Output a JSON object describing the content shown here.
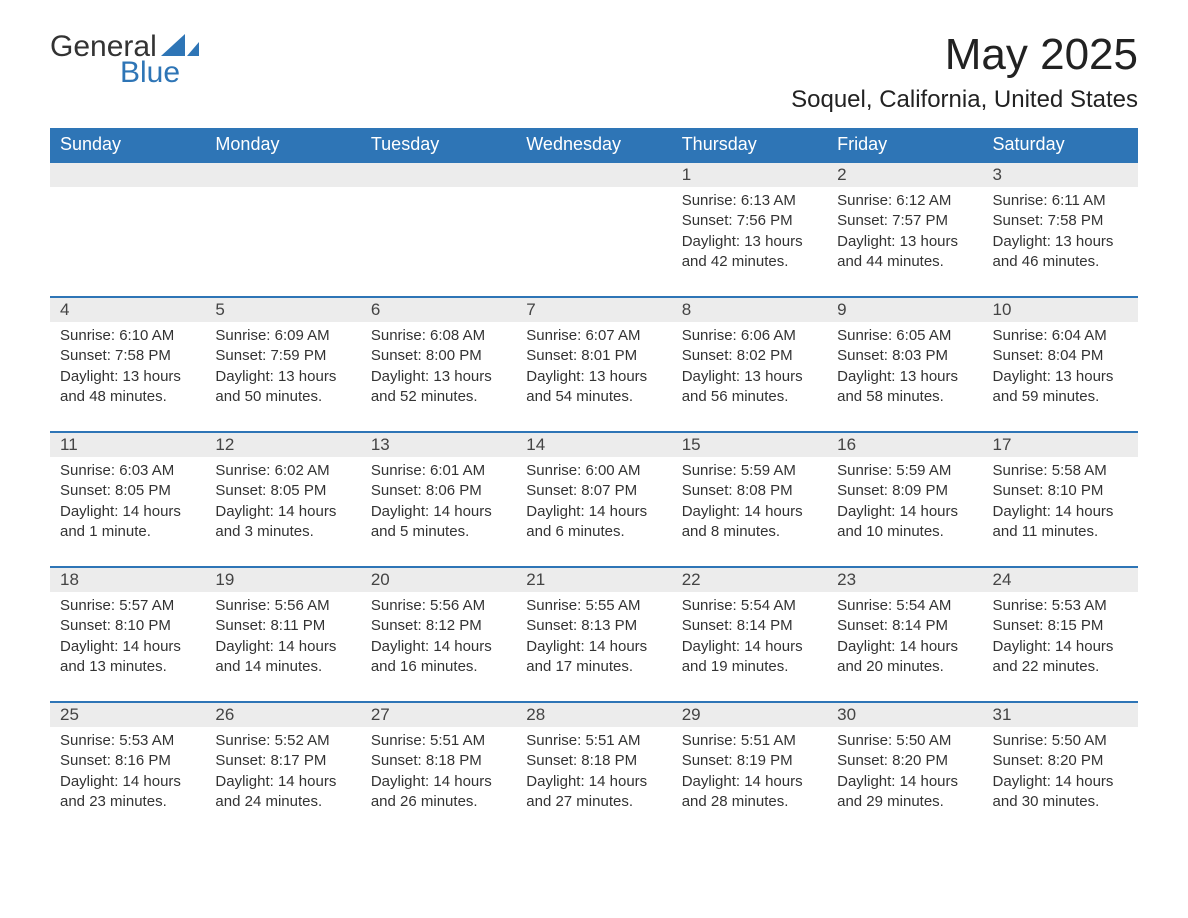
{
  "logo": {
    "general": "General",
    "blue": "Blue"
  },
  "title": "May 2025",
  "location": "Soquel, California, United States",
  "colors": {
    "header_bg": "#2e75b6",
    "header_text": "#ffffff",
    "daynum_bg": "#ececec",
    "row_border": "#2e75b6",
    "body_text": "#333333",
    "page_bg": "#ffffff",
    "logo_blue": "#2e75b6"
  },
  "weekdays": [
    "Sunday",
    "Monday",
    "Tuesday",
    "Wednesday",
    "Thursday",
    "Friday",
    "Saturday"
  ],
  "weeks": [
    [
      null,
      null,
      null,
      null,
      {
        "n": "1",
        "sr": "Sunrise: 6:13 AM",
        "ss": "Sunset: 7:56 PM",
        "dl": "Daylight: 13 hours and 42 minutes."
      },
      {
        "n": "2",
        "sr": "Sunrise: 6:12 AM",
        "ss": "Sunset: 7:57 PM",
        "dl": "Daylight: 13 hours and 44 minutes."
      },
      {
        "n": "3",
        "sr": "Sunrise: 6:11 AM",
        "ss": "Sunset: 7:58 PM",
        "dl": "Daylight: 13 hours and 46 minutes."
      }
    ],
    [
      {
        "n": "4",
        "sr": "Sunrise: 6:10 AM",
        "ss": "Sunset: 7:58 PM",
        "dl": "Daylight: 13 hours and 48 minutes."
      },
      {
        "n": "5",
        "sr": "Sunrise: 6:09 AM",
        "ss": "Sunset: 7:59 PM",
        "dl": "Daylight: 13 hours and 50 minutes."
      },
      {
        "n": "6",
        "sr": "Sunrise: 6:08 AM",
        "ss": "Sunset: 8:00 PM",
        "dl": "Daylight: 13 hours and 52 minutes."
      },
      {
        "n": "7",
        "sr": "Sunrise: 6:07 AM",
        "ss": "Sunset: 8:01 PM",
        "dl": "Daylight: 13 hours and 54 minutes."
      },
      {
        "n": "8",
        "sr": "Sunrise: 6:06 AM",
        "ss": "Sunset: 8:02 PM",
        "dl": "Daylight: 13 hours and 56 minutes."
      },
      {
        "n": "9",
        "sr": "Sunrise: 6:05 AM",
        "ss": "Sunset: 8:03 PM",
        "dl": "Daylight: 13 hours and 58 minutes."
      },
      {
        "n": "10",
        "sr": "Sunrise: 6:04 AM",
        "ss": "Sunset: 8:04 PM",
        "dl": "Daylight: 13 hours and 59 minutes."
      }
    ],
    [
      {
        "n": "11",
        "sr": "Sunrise: 6:03 AM",
        "ss": "Sunset: 8:05 PM",
        "dl": "Daylight: 14 hours and 1 minute."
      },
      {
        "n": "12",
        "sr": "Sunrise: 6:02 AM",
        "ss": "Sunset: 8:05 PM",
        "dl": "Daylight: 14 hours and 3 minutes."
      },
      {
        "n": "13",
        "sr": "Sunrise: 6:01 AM",
        "ss": "Sunset: 8:06 PM",
        "dl": "Daylight: 14 hours and 5 minutes."
      },
      {
        "n": "14",
        "sr": "Sunrise: 6:00 AM",
        "ss": "Sunset: 8:07 PM",
        "dl": "Daylight: 14 hours and 6 minutes."
      },
      {
        "n": "15",
        "sr": "Sunrise: 5:59 AM",
        "ss": "Sunset: 8:08 PM",
        "dl": "Daylight: 14 hours and 8 minutes."
      },
      {
        "n": "16",
        "sr": "Sunrise: 5:59 AM",
        "ss": "Sunset: 8:09 PM",
        "dl": "Daylight: 14 hours and 10 minutes."
      },
      {
        "n": "17",
        "sr": "Sunrise: 5:58 AM",
        "ss": "Sunset: 8:10 PM",
        "dl": "Daylight: 14 hours and 11 minutes."
      }
    ],
    [
      {
        "n": "18",
        "sr": "Sunrise: 5:57 AM",
        "ss": "Sunset: 8:10 PM",
        "dl": "Daylight: 14 hours and 13 minutes."
      },
      {
        "n": "19",
        "sr": "Sunrise: 5:56 AM",
        "ss": "Sunset: 8:11 PM",
        "dl": "Daylight: 14 hours and 14 minutes."
      },
      {
        "n": "20",
        "sr": "Sunrise: 5:56 AM",
        "ss": "Sunset: 8:12 PM",
        "dl": "Daylight: 14 hours and 16 minutes."
      },
      {
        "n": "21",
        "sr": "Sunrise: 5:55 AM",
        "ss": "Sunset: 8:13 PM",
        "dl": "Daylight: 14 hours and 17 minutes."
      },
      {
        "n": "22",
        "sr": "Sunrise: 5:54 AM",
        "ss": "Sunset: 8:14 PM",
        "dl": "Daylight: 14 hours and 19 minutes."
      },
      {
        "n": "23",
        "sr": "Sunrise: 5:54 AM",
        "ss": "Sunset: 8:14 PM",
        "dl": "Daylight: 14 hours and 20 minutes."
      },
      {
        "n": "24",
        "sr": "Sunrise: 5:53 AM",
        "ss": "Sunset: 8:15 PM",
        "dl": "Daylight: 14 hours and 22 minutes."
      }
    ],
    [
      {
        "n": "25",
        "sr": "Sunrise: 5:53 AM",
        "ss": "Sunset: 8:16 PM",
        "dl": "Daylight: 14 hours and 23 minutes."
      },
      {
        "n": "26",
        "sr": "Sunrise: 5:52 AM",
        "ss": "Sunset: 8:17 PM",
        "dl": "Daylight: 14 hours and 24 minutes."
      },
      {
        "n": "27",
        "sr": "Sunrise: 5:51 AM",
        "ss": "Sunset: 8:18 PM",
        "dl": "Daylight: 14 hours and 26 minutes."
      },
      {
        "n": "28",
        "sr": "Sunrise: 5:51 AM",
        "ss": "Sunset: 8:18 PM",
        "dl": "Daylight: 14 hours and 27 minutes."
      },
      {
        "n": "29",
        "sr": "Sunrise: 5:51 AM",
        "ss": "Sunset: 8:19 PM",
        "dl": "Daylight: 14 hours and 28 minutes."
      },
      {
        "n": "30",
        "sr": "Sunrise: 5:50 AM",
        "ss": "Sunset: 8:20 PM",
        "dl": "Daylight: 14 hours and 29 minutes."
      },
      {
        "n": "31",
        "sr": "Sunrise: 5:50 AM",
        "ss": "Sunset: 8:20 PM",
        "dl": "Daylight: 14 hours and 30 minutes."
      }
    ]
  ]
}
